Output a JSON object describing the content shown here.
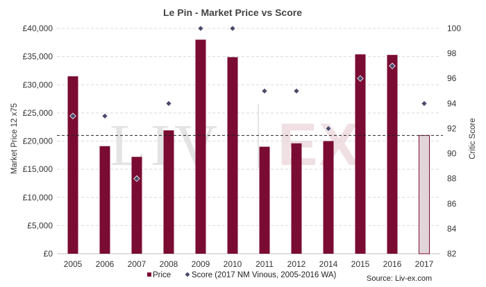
{
  "colors": {
    "bar": "#7a0b32",
    "bar_hollow_fill": "#e2d5d9",
    "marker": "#4a4a6a",
    "grid": "#d9d9d9",
    "reference_line": "#222222"
  },
  "chart_data": {
    "type": "bar",
    "title": "Le Pin - Market Price vs Score",
    "categories": [
      "2005",
      "2006",
      "2007",
      "2008",
      "2009",
      "2010",
      "2011",
      "2012",
      "2014",
      "2015",
      "2016",
      "2017"
    ],
    "series": [
      {
        "name": "Price",
        "type": "bar",
        "axis": "left",
        "values": [
          31500,
          19100,
          17200,
          21900,
          38000,
          34900,
          19000,
          19600,
          20000,
          35400,
          35300,
          21000
        ],
        "hollow_categories": [
          "2017"
        ]
      },
      {
        "name": "Score (2017 NM Vinous, 2005-2016 WA)",
        "type": "scatter",
        "marker": "diamond",
        "axis": "right",
        "values": [
          93,
          93,
          88,
          94,
          100,
          100,
          95,
          95,
          92,
          96,
          97,
          94
        ]
      }
    ],
    "reference_line": {
      "axis": "left",
      "value": 21000,
      "style": "dashed"
    },
    "ylabel": "Market Price 12 x75",
    "y2label": "Critic Score",
    "ylim": [
      0,
      40000
    ],
    "y_ticks": [
      "£0",
      "£5,000",
      "£10,000",
      "£15,000",
      "£20,000",
      "£25,000",
      "£30,000",
      "£35,000",
      "£40,000"
    ],
    "y2lim": [
      82,
      100
    ],
    "y2_ticks": [
      "82",
      "84",
      "86",
      "88",
      "90",
      "92",
      "94",
      "96",
      "98",
      "100"
    ],
    "grid": true,
    "legend_position": "bottom-left",
    "source": "Source: Liv-ex.com",
    "watermark": {
      "left": "LIV",
      "right": "EX"
    }
  }
}
